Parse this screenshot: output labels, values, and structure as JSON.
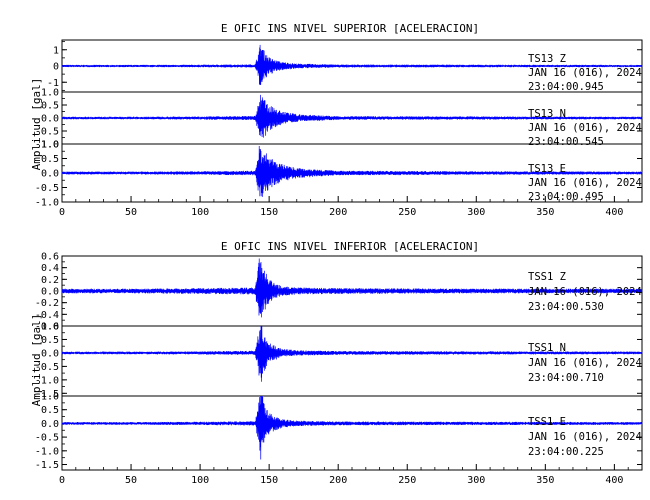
{
  "chart_data": [
    {
      "type": "line",
      "title": "E OFIC INS NIVEL SUPERIOR [ACELERACION]",
      "ylabel": "Amplitud [gal]",
      "xlabel": "",
      "xlim": [
        0,
        420
      ],
      "x_ticks": [
        "0",
        "50",
        "100",
        "150",
        "200",
        "250",
        "300",
        "350",
        "400"
      ],
      "trace_color": "#0000ff",
      "grid": false,
      "panels": [
        {
          "station": "TS13",
          "component": "Z",
          "date": "JAN 16 (016), 2024",
          "time": "23:04:00.945",
          "ylim": [
            -1.6,
            1.6
          ],
          "y_ticks": [
            "1",
            "0",
            "-1"
          ],
          "y_tick_values": [
            1,
            0,
            -1
          ],
          "series": [
            {
              "x": [
                0,
                50,
                100,
                140,
                144,
                145,
                146,
                148,
                150,
                155,
                160,
                170,
                200,
                300,
                420
              ],
              "y_envelope": [
                0.07,
                0.07,
                0.08,
                0.1,
                1.55,
                1.3,
                1.0,
                0.75,
                0.55,
                0.35,
                0.25,
                0.15,
                0.09,
                0.08,
                0.07
              ]
            }
          ]
        },
        {
          "station": "TS13",
          "component": "N",
          "date": "JAN 16 (016), 2024",
          "time": "23:04:00.545",
          "ylim": [
            -1.0,
            1.0
          ],
          "y_ticks": [
            "1.0",
            "0.5",
            "0.0",
            "-0.5",
            "-1.0"
          ],
          "y_tick_values": [
            1.0,
            0.5,
            0.0,
            -0.5,
            -1.0
          ],
          "series": [
            {
              "x": [
                0,
                50,
                100,
                140,
                144,
                146,
                148,
                150,
                155,
                160,
                170,
                200,
                300,
                420
              ],
              "y_envelope": [
                0.05,
                0.05,
                0.06,
                0.08,
                0.95,
                0.8,
                0.65,
                0.5,
                0.35,
                0.25,
                0.15,
                0.07,
                0.06,
                0.05
              ]
            }
          ]
        },
        {
          "station": "TS13",
          "component": "E",
          "date": "JAN 16 (016), 2024",
          "time": "23:04:00.495",
          "ylim": [
            -1.0,
            1.0
          ],
          "y_ticks": [
            "1.0",
            "0.5",
            "0.0",
            "-0.5",
            "-1.0"
          ],
          "y_tick_values": [
            1.0,
            0.5,
            0.0,
            -0.5,
            -1.0
          ],
          "series": [
            {
              "x": [
                0,
                50,
                100,
                140,
                143,
                145,
                148,
                150,
                155,
                160,
                170,
                200,
                300,
                420
              ],
              "y_envelope": [
                0.05,
                0.05,
                0.06,
                0.08,
                1.0,
                0.85,
                0.7,
                0.55,
                0.4,
                0.3,
                0.18,
                0.08,
                0.06,
                0.05
              ]
            }
          ]
        }
      ]
    },
    {
      "type": "line",
      "title": "E OFIC INS NIVEL INFERIOR [ACELERACION]",
      "ylabel": "Amplitud [gal]",
      "xlabel": "",
      "xlim": [
        0,
        420
      ],
      "x_ticks": [
        "0",
        "50",
        "100",
        "150",
        "200",
        "250",
        "300",
        "350",
        "400"
      ],
      "trace_color": "#0000ff",
      "grid": false,
      "panels": [
        {
          "station": "TSS1",
          "component": "Z",
          "date": "JAN 16 (016), 2024",
          "time": "23:04:00.530",
          "ylim": [
            -0.6,
            0.6
          ],
          "y_ticks": [
            "0.6",
            "0.4",
            "0.2",
            "0.0",
            "-0.2",
            "-0.4",
            "-0.6"
          ],
          "y_tick_values": [
            0.6,
            0.4,
            0.2,
            0.0,
            -0.2,
            -0.4,
            -0.6
          ],
          "series": [
            {
              "x": [
                0,
                50,
                100,
                140,
                143,
                145,
                148,
                150,
                155,
                160,
                170,
                200,
                300,
                420
              ],
              "y_envelope": [
                0.04,
                0.04,
                0.05,
                0.06,
                0.6,
                0.45,
                0.3,
                0.2,
                0.12,
                0.08,
                0.06,
                0.05,
                0.04,
                0.04
              ]
            }
          ]
        },
        {
          "station": "TSS1",
          "component": "N",
          "date": "JAN 16 (016), 2024",
          "time": "23:04:00.710",
          "ylim": [
            -1.6,
            1.0
          ],
          "y_ticks": [
            "1.0",
            "0.5",
            "0.0",
            "-0.5",
            "-1.0",
            "-1.5"
          ],
          "y_tick_values": [
            1.0,
            0.5,
            0.0,
            -0.5,
            -1.0,
            -1.5
          ],
          "series": [
            {
              "x": [
                0,
                50,
                100,
                140,
                143,
                144,
                146,
                148,
                150,
                155,
                160,
                170,
                200,
                300,
                420
              ],
              "y_envelope": [
                0.05,
                0.05,
                0.06,
                0.08,
                1.0,
                1.5,
                0.8,
                0.55,
                0.4,
                0.25,
                0.15,
                0.1,
                0.07,
                0.06,
                0.05
              ]
            }
          ]
        },
        {
          "station": "TSS1",
          "component": "E",
          "date": "JAN 16 (016), 2024",
          "time": "23:04:00.225",
          "ylim": [
            -1.7,
            1.0
          ],
          "y_ticks": [
            "1.0",
            "0.5",
            "0.0",
            "-0.5",
            "-1.0",
            "-1.5"
          ],
          "y_tick_values": [
            1.0,
            0.5,
            0.0,
            -0.5,
            -1.0,
            -1.5
          ],
          "series": [
            {
              "x": [
                0,
                50,
                100,
                140,
                143,
                144,
                146,
                148,
                150,
                155,
                160,
                170,
                200,
                300,
                420
              ],
              "y_envelope": [
                0.05,
                0.05,
                0.06,
                0.08,
                1.0,
                1.6,
                0.8,
                0.55,
                0.4,
                0.25,
                0.15,
                0.1,
                0.07,
                0.06,
                0.05
              ]
            }
          ]
        }
      ]
    }
  ]
}
